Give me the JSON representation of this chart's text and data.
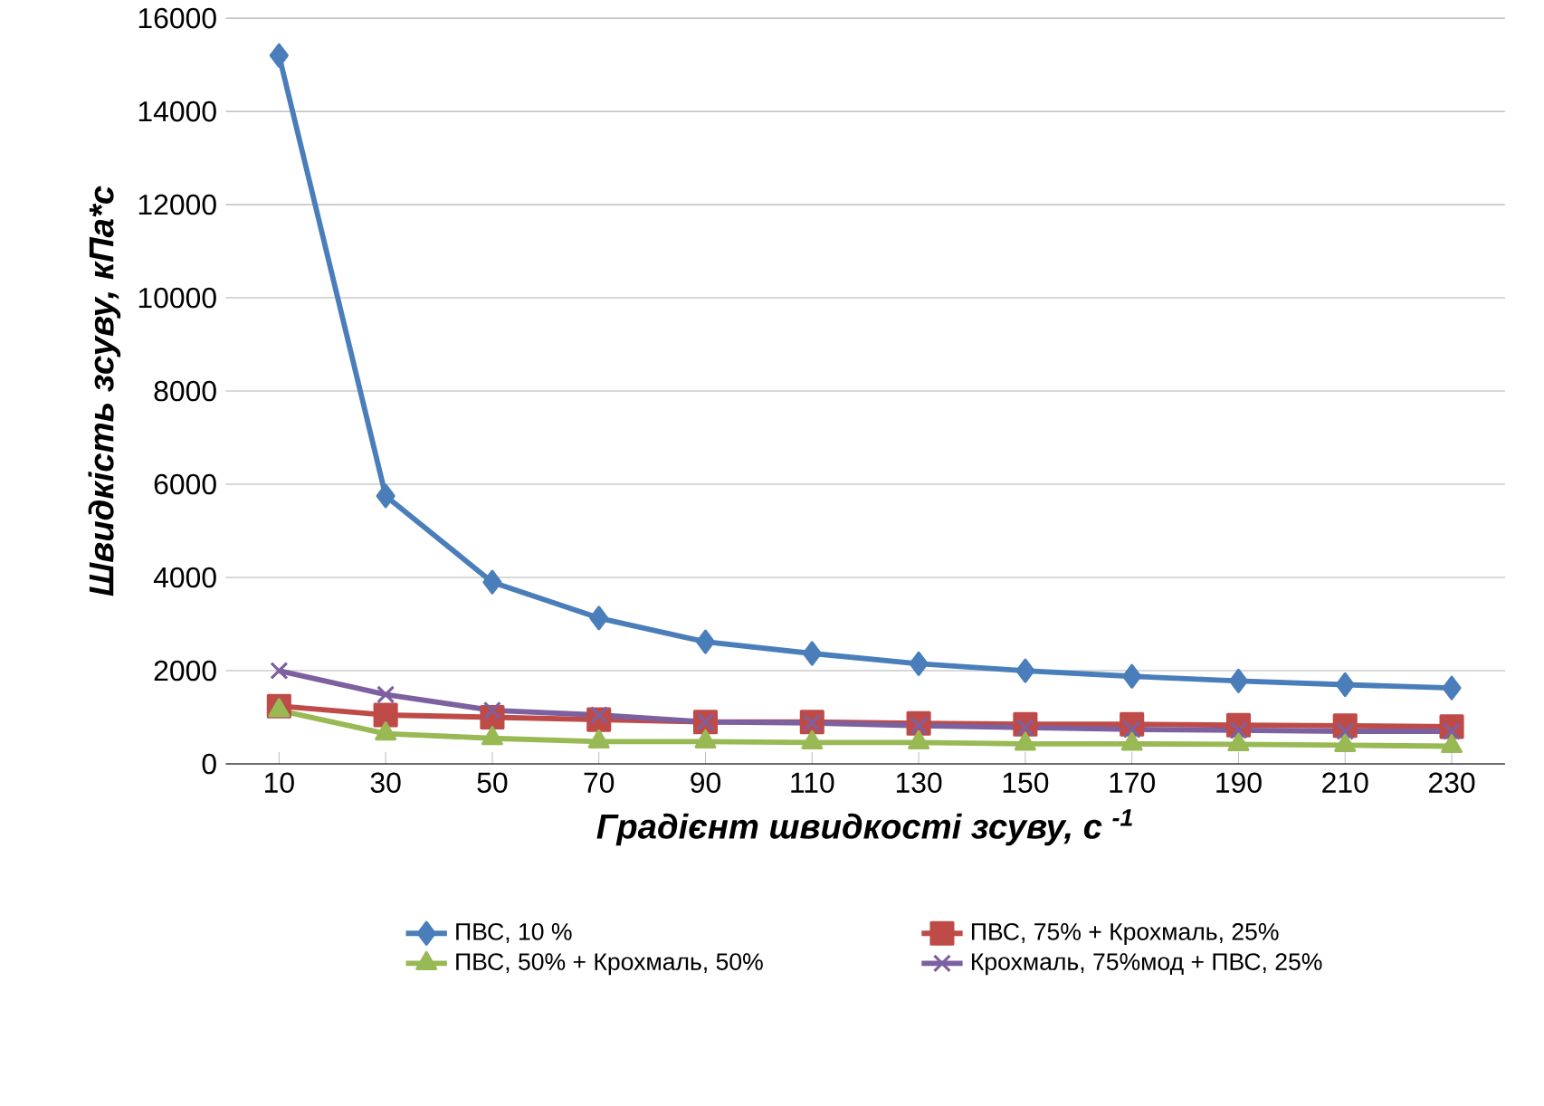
{
  "chart_data": {
    "type": "line",
    "xlabel": "Градієнт швидкості зсуву, с $^{-1}$",
    "ylabel": "Швидкість зсуву, кПа*с",
    "categories": [
      "10",
      "30",
      "50",
      "70",
      "90",
      "110",
      "130",
      "150",
      "170",
      "190",
      "210",
      "230"
    ],
    "series": [
      {
        "name": "ПВС, 10 %",
        "color": "#4a7ebb",
        "marker": "diamond",
        "values": [
          15200,
          5750,
          3900,
          3130,
          2620,
          2370,
          2150,
          2000,
          1880,
          1780,
          1700,
          1630
        ]
      },
      {
        "name": "ПВС, 75% + Крохмаль, 25%",
        "color": "#be4b48",
        "marker": "square",
        "values": [
          1240,
          1050,
          1000,
          950,
          900,
          900,
          870,
          850,
          850,
          830,
          820,
          800
        ]
      },
      {
        "name": "ПВС, 50% + Крохмаль, 50%",
        "color": "#98b954",
        "marker": "triangle",
        "values": [
          1150,
          650,
          550,
          480,
          480,
          460,
          460,
          430,
          430,
          420,
          400,
          380
        ]
      },
      {
        "name": "Крохмаль, 75%мод + ПВС, 25%",
        "color": "#7d60a0",
        "marker": "cross",
        "values": [
          2000,
          1490,
          1150,
          1050,
          900,
          880,
          820,
          780,
          740,
          720,
          700,
          700
        ]
      }
    ],
    "ylim": [
      0,
      16000
    ],
    "yticks": [
      0,
      2000,
      4000,
      6000,
      8000,
      10000,
      12000,
      14000,
      16000
    ],
    "grid": "y",
    "legend": "bottom",
    "line_style": "solid"
  }
}
